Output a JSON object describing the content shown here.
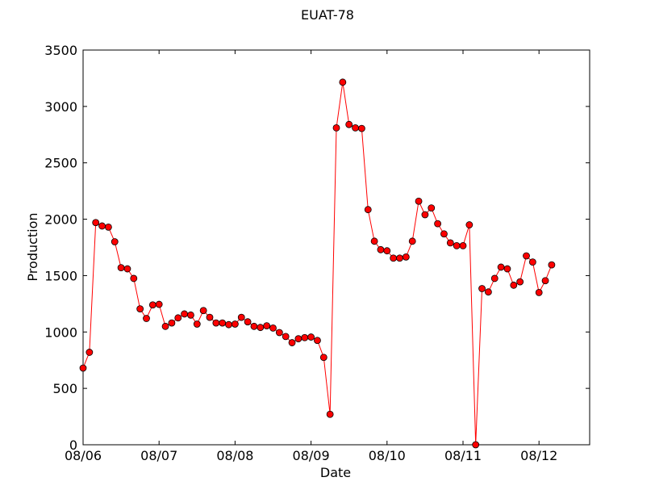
{
  "chart_data": {
    "type": "line",
    "title": "EUAT-78",
    "xlabel": "Date",
    "ylabel": "Production",
    "ylim": [
      0,
      3500
    ],
    "xlim": [
      "08/06 00:00",
      "08/12 16:00"
    ],
    "x_tick_labels": [
      "08/06",
      "08/07",
      "08/08",
      "08/09",
      "08/10",
      "08/11",
      "08/12"
    ],
    "y_tick_labels": [
      "0",
      "500",
      "1000",
      "1500",
      "2000",
      "2500",
      "3000",
      "3500"
    ],
    "y_ticks": [
      0,
      500,
      1000,
      1500,
      2000,
      2500,
      3000,
      3500
    ],
    "grid": false,
    "legend": "none",
    "line_color": "#ff0000",
    "marker_color": "#ff0000",
    "marker_edge_color": "#000000",
    "series": [
      {
        "x": [
          "08/06 00:00",
          "08/06 02:00",
          "08/06 04:00",
          "08/06 06:00",
          "08/06 08:00",
          "08/06 10:00",
          "08/06 12:00",
          "08/06 14:00",
          "08/06 16:00",
          "08/06 18:00",
          "08/06 20:00",
          "08/06 22:00",
          "08/07 00:00",
          "08/07 02:00",
          "08/07 04:00",
          "08/07 06:00",
          "08/07 08:00",
          "08/07 10:00",
          "08/07 12:00",
          "08/07 14:00",
          "08/07 16:00",
          "08/07 18:00",
          "08/07 20:00",
          "08/07 22:00",
          "08/08 00:00",
          "08/08 02:00",
          "08/08 04:00",
          "08/08 06:00",
          "08/08 08:00",
          "08/08 10:00",
          "08/08 12:00",
          "08/08 14:00",
          "08/08 16:00",
          "08/08 18:00",
          "08/08 20:00",
          "08/08 22:00",
          "08/09 00:00",
          "08/09 02:00",
          "08/09 04:00",
          "08/09 06:00",
          "08/09 08:00",
          "08/09 10:00",
          "08/09 12:00",
          "08/09 14:00",
          "08/09 16:00",
          "08/09 18:00",
          "08/09 20:00",
          "08/09 22:00",
          "08/10 00:00",
          "08/10 02:00",
          "08/10 04:00",
          "08/10 06:00",
          "08/10 08:00",
          "08/10 10:00",
          "08/10 12:00",
          "08/10 14:00",
          "08/10 16:00",
          "08/10 18:00",
          "08/10 20:00",
          "08/10 22:00",
          "08/11 00:00",
          "08/11 02:00",
          "08/11 04:00",
          "08/11 06:00",
          "08/11 08:00",
          "08/11 10:00",
          "08/11 12:00",
          "08/11 14:00",
          "08/11 16:00",
          "08/11 18:00",
          "08/11 20:00",
          "08/11 22:00",
          "08/12 00:00",
          "08/12 02:00",
          "08/12 04:00"
        ],
        "values": [
          680,
          820,
          1970,
          1940,
          1930,
          1800,
          1570,
          1560,
          1475,
          1205,
          1120,
          1240,
          1245,
          1050,
          1080,
          1125,
          1160,
          1150,
          1070,
          1190,
          1130,
          1080,
          1080,
          1065,
          1070,
          1130,
          1090,
          1050,
          1040,
          1055,
          1035,
          995,
          960,
          905,
          940,
          950,
          955,
          925,
          775,
          270,
          2810,
          3215,
          2840,
          2810,
          2805,
          2085,
          1805,
          1730,
          1720,
          1655,
          1655,
          1665,
          1805,
          2160,
          2040,
          2100,
          1960,
          1870,
          1790,
          1765,
          1765,
          1950,
          0,
          1385,
          1355,
          1475,
          1575,
          1560,
          1415,
          1445,
          1675,
          1620,
          1350,
          1455,
          1595
        ]
      }
    ]
  }
}
